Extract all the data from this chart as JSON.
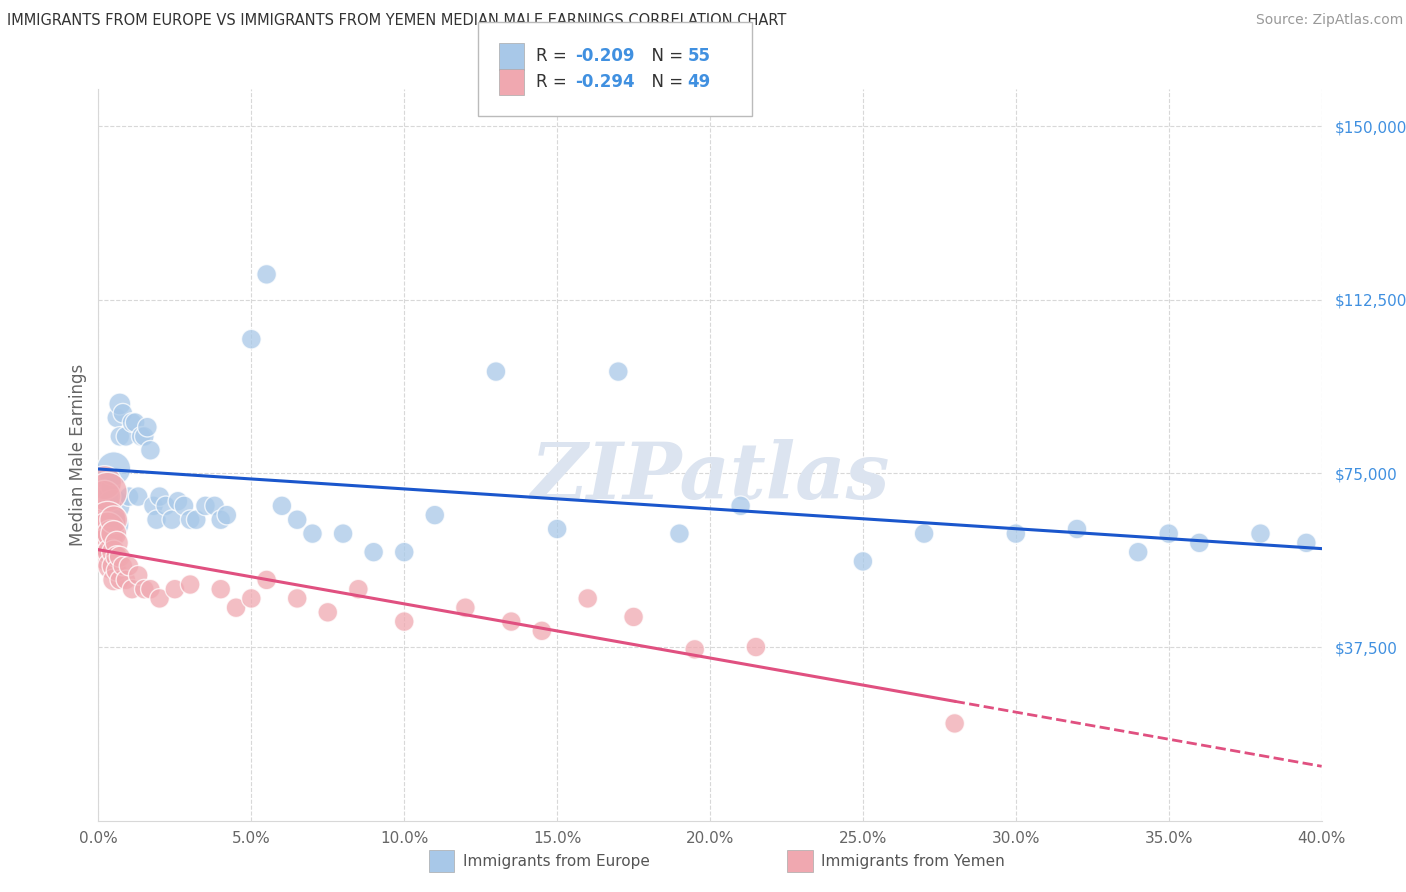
{
  "title": "IMMIGRANTS FROM EUROPE VS IMMIGRANTS FROM YEMEN MEDIAN MALE EARNINGS CORRELATION CHART",
  "source_text": "Source: ZipAtlas.com",
  "ylabel": "Median Male Earnings",
  "ytick_values": [
    37500,
    75000,
    112500,
    150000
  ],
  "ymin": 0,
  "ymax": 158000,
  "xmin": 0.0,
  "xmax": 0.4,
  "legend_R_europe": "-0.209",
  "legend_N_europe": "55",
  "legend_R_yemen": "-0.294",
  "legend_N_yemen": "49",
  "legend_label_europe": "Immigrants from Europe",
  "legend_label_yemen": "Immigrants from Yemen",
  "blue_color": "#a8c8e8",
  "pink_color": "#f0a8b0",
  "blue_line_color": "#1a56cc",
  "pink_line_color": "#e05080",
  "title_color": "#333333",
  "axis_label_color": "#666666",
  "ytick_color": "#4090e0",
  "grid_color": "#d8d8d8",
  "watermark_color": "#dce4f0",
  "europe_x": [
    0.002,
    0.003,
    0.004,
    0.005,
    0.005,
    0.005,
    0.006,
    0.007,
    0.007,
    0.008,
    0.009,
    0.01,
    0.011,
    0.012,
    0.013,
    0.014,
    0.015,
    0.016,
    0.017,
    0.018,
    0.019,
    0.02,
    0.022,
    0.024,
    0.026,
    0.028,
    0.03,
    0.032,
    0.035,
    0.038,
    0.04,
    0.042,
    0.05,
    0.055,
    0.06,
    0.065,
    0.07,
    0.08,
    0.09,
    0.1,
    0.11,
    0.13,
    0.15,
    0.17,
    0.19,
    0.21,
    0.25,
    0.27,
    0.3,
    0.32,
    0.34,
    0.35,
    0.36,
    0.38,
    0.395
  ],
  "europe_y": [
    71000,
    73000,
    72000,
    76000,
    68000,
    64000,
    87000,
    90000,
    83000,
    88000,
    83000,
    70000,
    86000,
    86000,
    70000,
    83000,
    83000,
    85000,
    80000,
    68000,
    65000,
    70000,
    68000,
    65000,
    69000,
    68000,
    65000,
    65000,
    68000,
    68000,
    65000,
    66000,
    104000,
    118000,
    68000,
    65000,
    62000,
    62000,
    58000,
    58000,
    66000,
    97000,
    63000,
    97000,
    62000,
    68000,
    56000,
    62000,
    62000,
    63000,
    58000,
    62000,
    60000,
    62000,
    60000
  ],
  "europe_sizes": [
    200,
    200,
    200,
    600,
    550,
    480,
    200,
    250,
    200,
    200,
    200,
    200,
    200,
    200,
    200,
    200,
    200,
    200,
    200,
    200,
    200,
    200,
    200,
    200,
    200,
    200,
    200,
    200,
    200,
    200,
    200,
    200,
    200,
    200,
    200,
    200,
    200,
    200,
    200,
    200,
    200,
    200,
    200,
    200,
    200,
    200,
    200,
    200,
    200,
    200,
    200,
    200,
    200,
    200,
    200
  ],
  "yemen_x": [
    0.001,
    0.001,
    0.002,
    0.002,
    0.002,
    0.003,
    0.003,
    0.003,
    0.003,
    0.003,
    0.004,
    0.004,
    0.004,
    0.005,
    0.005,
    0.005,
    0.005,
    0.005,
    0.006,
    0.006,
    0.006,
    0.007,
    0.007,
    0.008,
    0.009,
    0.01,
    0.011,
    0.013,
    0.015,
    0.017,
    0.02,
    0.025,
    0.03,
    0.04,
    0.045,
    0.05,
    0.055,
    0.065,
    0.075,
    0.085,
    0.1,
    0.12,
    0.135,
    0.145,
    0.16,
    0.175,
    0.195,
    0.215,
    0.28
  ],
  "yemen_y": [
    67000,
    62000,
    73000,
    70000,
    63000,
    71000,
    65000,
    63000,
    60000,
    57000,
    62000,
    58000,
    55000,
    65000,
    62000,
    58000,
    55000,
    52000,
    60000,
    57000,
    54000,
    57000,
    52000,
    55000,
    52000,
    55000,
    50000,
    53000,
    50000,
    50000,
    48000,
    50000,
    51000,
    50000,
    46000,
    48000,
    52000,
    48000,
    45000,
    50000,
    43000,
    46000,
    43000,
    41000,
    48000,
    44000,
    37000,
    37500,
    21000
  ],
  "yemen_sizes": [
    200,
    200,
    600,
    550,
    480,
    800,
    700,
    600,
    500,
    450,
    400,
    380,
    350,
    400,
    350,
    300,
    280,
    250,
    280,
    250,
    230,
    230,
    200,
    200,
    200,
    200,
    200,
    200,
    200,
    200,
    200,
    200,
    200,
    200,
    200,
    200,
    200,
    200,
    200,
    200,
    200,
    200,
    200,
    200,
    200,
    200,
    200,
    200,
    200
  ]
}
